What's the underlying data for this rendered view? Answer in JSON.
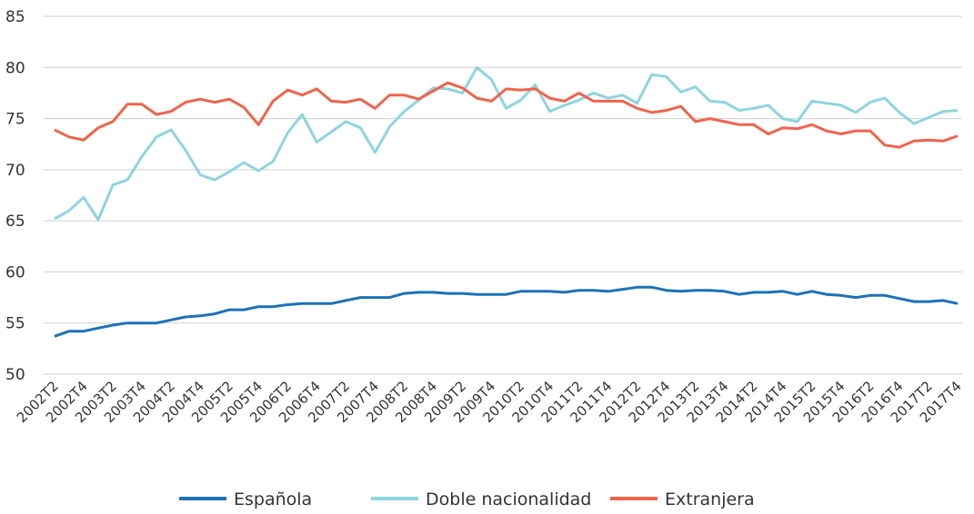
{
  "chart_data": {
    "type": "line",
    "categories": [
      "2002T2",
      null,
      "2002T4",
      null,
      "2003T2",
      null,
      "2003T4",
      null,
      "2004T2",
      null,
      "2004T4",
      null,
      "2005T2",
      null,
      "2005T4",
      null,
      "2006T2",
      null,
      "2006T4",
      null,
      "2007T2",
      null,
      "2007T4",
      null,
      "2008T2",
      null,
      "2008T4",
      null,
      "2009T2",
      null,
      "2009T4",
      null,
      "2010T2",
      null,
      "2010T4",
      null,
      "2011T2",
      null,
      "2011T4",
      null,
      "2012T2",
      null,
      "2012T4",
      null,
      "2013T2",
      null,
      "2013T4",
      null,
      "2014T2",
      null,
      "2014T4",
      null,
      "2015T2",
      null,
      "2015T4",
      null,
      "2016T2",
      null,
      "2016T4",
      null,
      "2017T2",
      null,
      "2017T4"
    ],
    "series": [
      {
        "name": "Española",
        "color": "#1b72b7",
        "values": [
          53.7,
          54.2,
          54.2,
          54.5,
          54.8,
          55.0,
          55.0,
          55.0,
          55.3,
          55.6,
          55.7,
          55.9,
          56.3,
          56.3,
          56.6,
          56.6,
          56.8,
          56.9,
          56.9,
          56.9,
          57.2,
          57.5,
          57.5,
          57.5,
          57.9,
          58.0,
          58.0,
          57.9,
          57.9,
          57.8,
          57.8,
          57.8,
          58.1,
          58.1,
          58.1,
          58.0,
          58.2,
          58.2,
          58.1,
          58.3,
          58.5,
          58.5,
          58.2,
          58.1,
          58.2,
          58.2,
          58.1,
          57.8,
          58.0,
          58.0,
          58.1,
          57.8,
          58.1,
          57.8,
          57.7,
          57.5,
          57.7,
          57.7,
          57.4,
          57.1,
          57.1,
          57.2,
          56.9
        ]
      },
      {
        "name": "Doble nacionalidad",
        "color": "#8fd4df",
        "values": [
          65.2,
          66.0,
          67.3,
          65.1,
          68.5,
          69.0,
          71.3,
          73.2,
          73.9,
          71.9,
          69.5,
          69.0,
          69.8,
          70.7,
          69.9,
          70.8,
          73.6,
          75.4,
          72.7,
          73.7,
          74.7,
          74.1,
          71.7,
          74.2,
          75.7,
          76.8,
          78.0,
          77.9,
          77.5,
          80.0,
          78.8,
          76.0,
          76.8,
          78.3,
          75.7,
          76.3,
          76.8,
          77.5,
          77.0,
          77.3,
          76.5,
          79.3,
          79.1,
          77.6,
          78.1,
          76.7,
          76.6,
          75.8,
          76.0,
          76.3,
          75.0,
          74.7,
          76.7,
          76.5,
          76.3,
          75.6,
          76.6,
          77.0,
          75.6,
          74.5,
          75.1,
          75.7,
          75.8
        ]
      },
      {
        "name": "Extranjera",
        "color": "#ef644c",
        "values": [
          73.9,
          73.2,
          72.9,
          74.1,
          74.7,
          76.4,
          76.4,
          75.4,
          75.7,
          76.6,
          76.9,
          76.6,
          76.9,
          76.1,
          74.4,
          76.7,
          77.8,
          77.3,
          77.9,
          76.7,
          76.6,
          76.9,
          76.0,
          77.3,
          77.3,
          76.9,
          77.7,
          78.5,
          78.0,
          77.0,
          76.7,
          77.9,
          77.8,
          77.9,
          77.0,
          76.7,
          77.5,
          76.7,
          76.7,
          76.7,
          76.0,
          75.6,
          75.8,
          76.2,
          74.7,
          75.0,
          74.7,
          74.4,
          74.4,
          73.5,
          74.1,
          74.0,
          74.4,
          73.8,
          73.5,
          73.8,
          73.8,
          72.4,
          72.2,
          72.8,
          72.9,
          72.8,
          73.3
        ]
      }
    ],
    "ylim": [
      50,
      85
    ],
    "yticks": [
      50,
      55,
      60,
      65,
      70,
      75,
      80,
      85
    ],
    "grid": true,
    "legend": "bottom"
  }
}
